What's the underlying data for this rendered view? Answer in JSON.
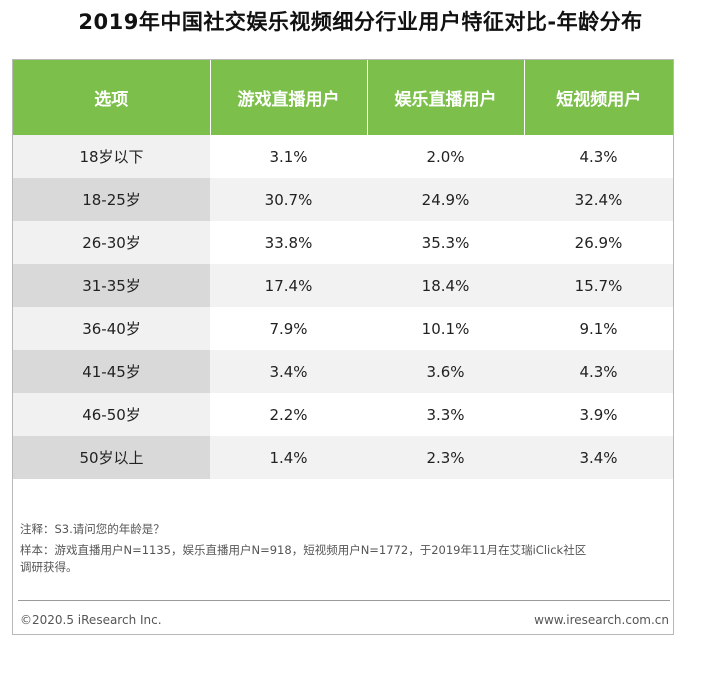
{
  "title": "2019年中国社交娱乐视频细分行业用户特征对比-年龄分布",
  "chart_data": {
    "type": "table",
    "title": "2019年中国社交娱乐视频细分行业用户特征对比-年龄分布",
    "columns": [
      "选项",
      "游戏直播用户",
      "娱乐直播用户",
      "短视频用户"
    ],
    "rows": [
      [
        "18岁以下",
        "3.1%",
        "2.0%",
        "4.3%"
      ],
      [
        "18-25岁",
        "30.7%",
        "24.9%",
        "32.4%"
      ],
      [
        "26-30岁",
        "33.8%",
        "35.3%",
        "26.9%"
      ],
      [
        "31-35岁",
        "17.4%",
        "18.4%",
        "15.7%"
      ],
      [
        "36-40岁",
        "7.9%",
        "10.1%",
        "9.1%"
      ],
      [
        "41-45岁",
        "3.4%",
        "3.6%",
        "4.3%"
      ],
      [
        "46-50岁",
        "2.2%",
        "3.3%",
        "3.9%"
      ],
      [
        "50岁以上",
        "1.4%",
        "2.3%",
        "3.4%"
      ]
    ],
    "header_color": "#7cc04b"
  },
  "notes": {
    "note": "注释：S3.请问您的年龄是？",
    "sample_line1": "样本：游戏直播用户N=1135，娱乐直播用户N=918，短视频用户N=1772，于2019年11月在艾瑞iClick社区",
    "sample_line2": "调研获得。"
  },
  "footer": {
    "copyright": "©2020.5 iResearch Inc.",
    "website": "www.iresearch.com.cn"
  }
}
